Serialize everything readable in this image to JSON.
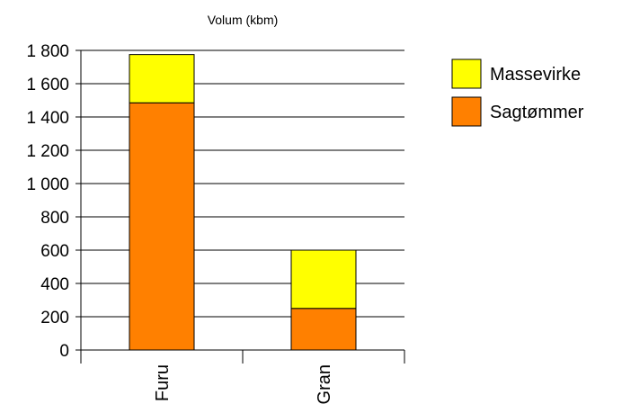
{
  "chart_data": {
    "type": "bar",
    "stacked": true,
    "title": "Volum (kbm)",
    "categories": [
      "Furu",
      "Gran"
    ],
    "series": [
      {
        "name": "Sagtømmer",
        "values": [
          1485,
          250
        ],
        "color": "#ff8000"
      },
      {
        "name": "Massevirke",
        "values": [
          290,
          350
        ],
        "color": "#ffff00"
      }
    ],
    "ylim": [
      0,
      1800
    ],
    "yticks": [
      0,
      200,
      400,
      600,
      800,
      1000,
      1200,
      1400,
      1600,
      1800
    ],
    "ytick_labels": [
      "0",
      "200",
      "400",
      "600",
      "800",
      "1 000",
      "1 200",
      "1 400",
      "1 600",
      "1 800"
    ],
    "grid": true,
    "legend_position": "top-right",
    "legend_order": [
      "Massevirke",
      "Sagtømmer"
    ]
  }
}
